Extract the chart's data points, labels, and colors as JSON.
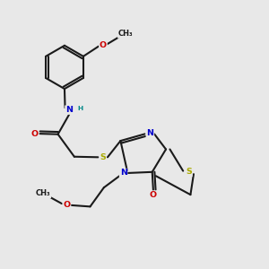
{
  "bg_color": "#e8e8e8",
  "atom_colors": {
    "C": "#1a1a1a",
    "N": "#0000cc",
    "O": "#cc0000",
    "S": "#aaaa00",
    "H": "#008888"
  },
  "bond_color": "#1a1a1a",
  "font_size": 6.8,
  "line_width": 1.5,
  "fig_size": [
    3.0,
    3.0
  ],
  "dpi": 100
}
